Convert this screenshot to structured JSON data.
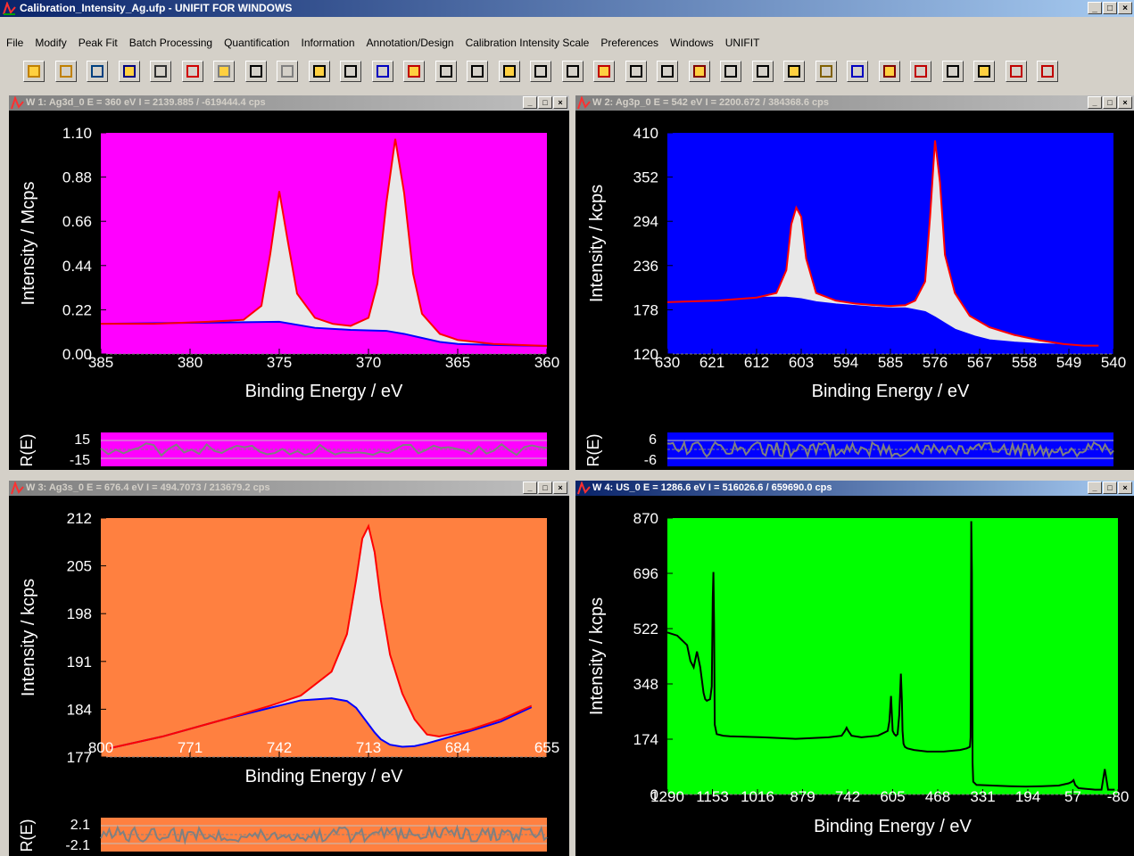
{
  "app": {
    "title": "Calibration_Intensity_Ag.ufp - UNIFIT FOR WINDOWS",
    "window_buttons": [
      "_",
      "□",
      "×"
    ]
  },
  "menu": [
    "File",
    "Modify",
    "Peak Fit",
    "Batch Processing",
    "Quantification",
    "Information",
    "Annotation/Design",
    "Calibration Intensity Scale",
    "Preferences",
    "Windows",
    "UNIFIT"
  ],
  "toolbar_icons": [
    "open-folder-icon",
    "open-project-icon",
    "save-all-icon",
    "save-icon",
    "spectrum-icon",
    "delete-spectrum-icon",
    "grey-box-icon",
    "background-icon",
    "peak-icon",
    "table-icon",
    "calibration-icon",
    "atom-icon",
    "batch-icon",
    "fit-icon",
    "fit-batch-icon",
    "fit-region-icon",
    "peak-wizard-icon",
    "peak-wizard-2-icon",
    "compare-icon",
    "tool-icon",
    "info-icon",
    "ip-icon",
    "te-icon",
    "ii-icon",
    "ip2-icon",
    "image-icon",
    "design-icon",
    "annotate-icon",
    "scale-icon",
    "grid-icon",
    "windows-icon",
    "close-windows-icon",
    "ms-icon"
  ],
  "colors": {
    "w1_bg": "#ff00ff",
    "w2_bg": "#0000ff",
    "w3_bg": "#ff8040",
    "w4_bg": "#00ff00",
    "fit": "#ff0000",
    "background": "#0000ff",
    "peak_fill": "#e8e8e8"
  },
  "windows": [
    {
      "title": "W 1: Ag3d_0  E = 360 eV  I = 2139.885 / -619444.4  cps",
      "active": false,
      "ylabel": "Intensity / Mcps",
      "xlabel": "Binding Energy / eV",
      "residual_label": "R(E)",
      "yticks": [
        "1.10",
        "0.88",
        "0.66",
        "0.44",
        "0.22",
        "0.00"
      ],
      "xticks": [
        "385",
        "380",
        "375",
        "370",
        "365",
        "360"
      ],
      "res_ticks": [
        "15",
        "-15"
      ]
    },
    {
      "title": "W 2: Ag3p_0  E = 542 eV  I = 2200.672 /  384368.6  cps",
      "active": false,
      "ylabel": "Intensity / kcps",
      "xlabel": "Binding Energy / eV",
      "residual_label": "R(E)",
      "yticks": [
        "410",
        "352",
        "294",
        "236",
        "178",
        "120"
      ],
      "xticks": [
        "630",
        "621",
        "612",
        "603",
        "594",
        "585",
        "576",
        "567",
        "558",
        "549",
        "540"
      ],
      "res_ticks": [
        "6",
        "-6"
      ]
    },
    {
      "title": "W 3: Ag3s_0  E = 676.4 eV  I = 494.7073 / 213679.2  cps",
      "active": false,
      "ylabel": "Intensity / kcps",
      "xlabel": "Binding Energy / eV",
      "residual_label": "R(E)",
      "yticks": [
        "212",
        "205",
        "198",
        "191",
        "184",
        "177"
      ],
      "xticks": [
        "800",
        "771",
        "742",
        "713",
        "684",
        "655"
      ],
      "res_ticks": [
        "2.1",
        "-2.1"
      ]
    },
    {
      "title": "W 4: US_0  E = 1286.6 eV  I = 516026.6 /  659690.0  cps",
      "active": true,
      "ylabel": "Intensity / kcps",
      "xlabel": "Binding Energy / eV",
      "yticks": [
        "870",
        "696",
        "522",
        "348",
        "174",
        "0"
      ],
      "xticks": [
        "1290",
        "1153",
        "1016",
        "879",
        "742",
        "605",
        "468",
        "331",
        "194",
        "57",
        "-80"
      ]
    }
  ],
  "chart_data": [
    {
      "type": "line",
      "x_range": [
        385,
        360
      ],
      "ylim": [
        0,
        1.1
      ],
      "series": [
        {
          "x": [
            385,
            382,
            379,
            377,
            376,
            375.5,
            375,
            374.5,
            374,
            373,
            372,
            371,
            370,
            369.5,
            369,
            368.5,
            368,
            367.5,
            367,
            366,
            365,
            363,
            360
          ],
          "values": [
            0.15,
            0.15,
            0.16,
            0.17,
            0.24,
            0.5,
            0.81,
            0.55,
            0.3,
            0.18,
            0.15,
            0.14,
            0.18,
            0.35,
            0.75,
            1.07,
            0.8,
            0.4,
            0.2,
            0.1,
            0.07,
            0.05,
            0.04
          ]
        },
        {
          "x": [
            385,
            380,
            375,
            373,
            371,
            369,
            368,
            367,
            366,
            365,
            363,
            360
          ],
          "values": [
            0.15,
            0.155,
            0.16,
            0.13,
            0.12,
            0.115,
            0.1,
            0.08,
            0.06,
            0.05,
            0.045,
            0.04
          ]
        }
      ]
    },
    {
      "type": "line",
      "x_range": [
        630,
        540
      ],
      "ylim": [
        120,
        410
      ],
      "series": [
        {
          "x": [
            630,
            620,
            612,
            608,
            606,
            605,
            604,
            603,
            602,
            600,
            596,
            592,
            588,
            585,
            582,
            580,
            578,
            577,
            576,
            575,
            574,
            572,
            569,
            565,
            560,
            555,
            550,
            546,
            543
          ],
          "values": [
            188,
            190,
            194,
            200,
            230,
            290,
            312,
            300,
            245,
            200,
            190,
            186,
            184,
            183,
            184,
            190,
            215,
            300,
            400,
            345,
            250,
            200,
            170,
            155,
            145,
            138,
            133,
            131,
            131
          ]
        },
        {
          "x": [
            630,
            620,
            612,
            606,
            603,
            600,
            596,
            592,
            588,
            585,
            582,
            578,
            576,
            574,
            572,
            568,
            565,
            560,
            555,
            550,
            546,
            543
          ],
          "values": [
            188,
            190,
            194,
            194,
            192,
            188,
            185,
            183,
            181,
            180,
            180,
            175,
            168,
            160,
            152,
            143,
            138,
            135,
            133,
            132,
            131,
            131
          ]
        }
      ]
    },
    {
      "type": "line",
      "x_range": [
        800,
        655
      ],
      "ylim": [
        177,
        212
      ],
      "series": [
        {
          "x": [
            797,
            780,
            760,
            745,
            735,
            725,
            720,
            717,
            715,
            713,
            711,
            709,
            706,
            702,
            698,
            694,
            690,
            680,
            670,
            660
          ],
          "values": [
            178.3,
            180,
            182.5,
            184.5,
            186,
            189.5,
            195,
            203,
            209,
            210.8,
            207,
            200,
            192,
            186.3,
            182.5,
            180.3,
            180,
            181,
            182.5,
            184.5
          ]
        },
        {
          "x": [
            797,
            780,
            760,
            745,
            735,
            725,
            720,
            717,
            715,
            713,
            711,
            709,
            706,
            702,
            698,
            694,
            690,
            680,
            670,
            660
          ],
          "values": [
            178.3,
            180,
            182.5,
            184.2,
            185.3,
            185.6,
            185.2,
            184.2,
            183,
            181.8,
            180.6,
            179.6,
            178.8,
            178.5,
            178.6,
            179,
            179.5,
            180.8,
            182.2,
            184.3
          ]
        }
      ]
    },
    {
      "type": "line",
      "x_range": [
        1290,
        -80
      ],
      "ylim": [
        0,
        870
      ],
      "series": [
        {
          "x": [
            1290,
            1260,
            1240,
            1230,
            1220,
            1210,
            1200,
            1190,
            1180,
            1175,
            1170,
            1160,
            1155,
            1152,
            1150,
            1148,
            1146,
            1140,
            1120,
            1100,
            1000,
            900,
            800,
            760,
            750,
            745,
            740,
            730,
            700,
            650,
            640,
            620,
            615,
            610,
            605,
            600,
            595,
            590,
            585,
            580,
            577,
            575,
            572,
            568,
            565,
            560,
            540,
            500,
            450,
            400,
            380,
            370,
            368,
            366,
            364,
            362,
            360,
            350,
            300,
            250,
            200,
            150,
            100,
            70,
            60,
            55,
            50,
            40,
            20,
            0,
            -10,
            -20,
            -30,
            -40,
            -50,
            -60,
            -70
          ],
          "values": [
            510,
            500,
            480,
            470,
            420,
            400,
            450,
            400,
            320,
            300,
            295,
            300,
            340,
            620,
            700,
            540,
            220,
            190,
            185,
            183,
            180,
            175,
            180,
            185,
            200,
            210,
            200,
            185,
            180,
            185,
            190,
            200,
            230,
            310,
            200,
            190,
            185,
            190,
            250,
            380,
            300,
            200,
            160,
            150,
            148,
            145,
            140,
            135,
            135,
            140,
            145,
            150,
            180,
            860,
            700,
            100,
            40,
            30,
            28,
            26,
            25,
            26,
            28,
            35,
            40,
            45,
            30,
            20,
            18,
            16,
            15,
            15,
            15,
            80,
            15,
            15,
            15
          ]
        }
      ]
    }
  ]
}
